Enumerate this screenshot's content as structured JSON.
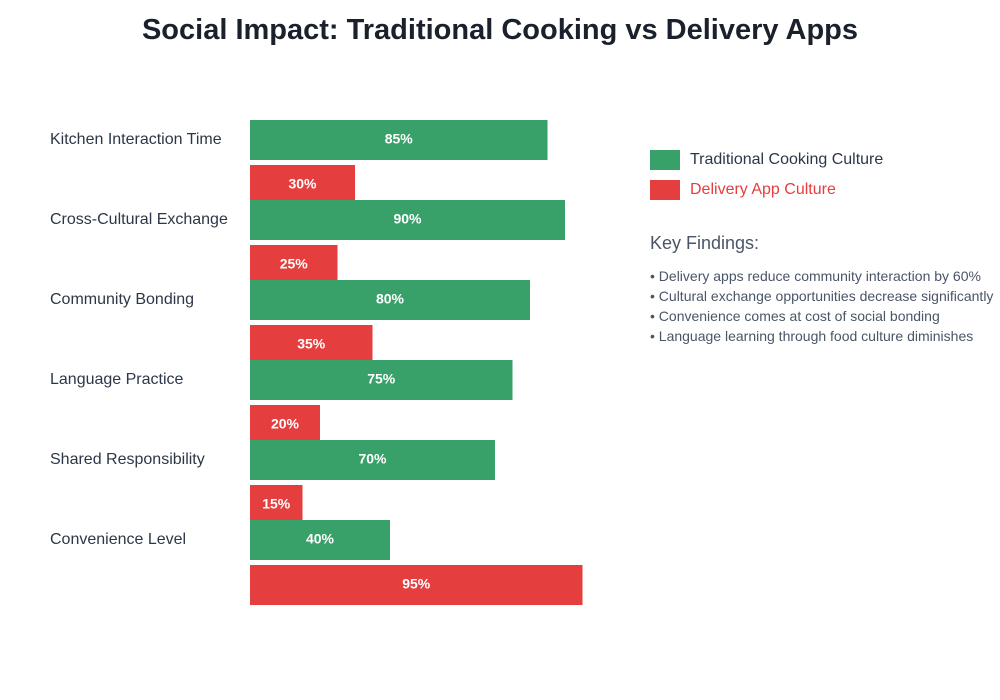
{
  "chart_data": {
    "type": "bar",
    "orientation": "horizontal",
    "title": "Social Impact: Traditional Cooking vs Delivery Apps",
    "categories": [
      "Kitchen Interaction Time",
      "Cross-Cultural Exchange",
      "Community Bonding",
      "Language Practice",
      "Shared Responsibility",
      "Convenience Level"
    ],
    "series": [
      {
        "name": "Traditional Cooking Culture",
        "color": "#38a169",
        "values": [
          85,
          90,
          80,
          75,
          70,
          40
        ]
      },
      {
        "name": "Delivery App Culture",
        "color": "#e53e3e",
        "values": [
          30,
          25,
          35,
          20,
          15,
          95
        ]
      }
    ],
    "xlim": [
      0,
      100
    ],
    "unit": "%",
    "legend_placement": "right",
    "grid": false
  },
  "key_findings": {
    "title": "Key Findings:",
    "items": [
      "• Delivery apps reduce community interaction by 60%",
      "• Cultural exchange opportunities decrease significantly",
      "• Convenience comes at cost of social bonding",
      "• Language learning through food culture diminishes"
    ]
  }
}
